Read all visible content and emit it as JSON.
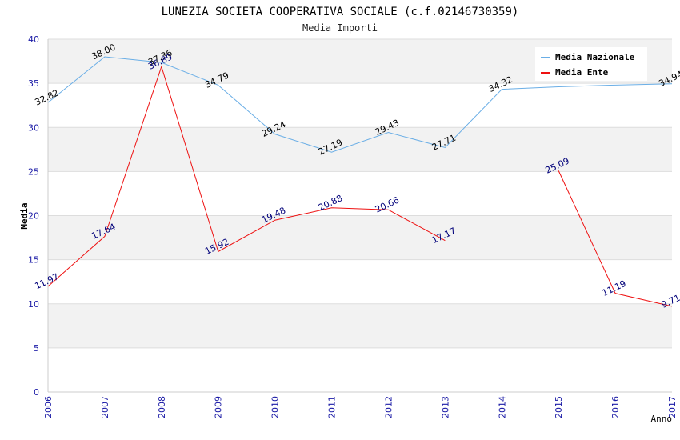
{
  "chart_data": {
    "type": "line",
    "title": "LUNEZIA SOCIETA COOPERATIVA SOCIALE (c.f.02146730359)",
    "subtitle": "Media Importi",
    "xlabel": "Anno",
    "ylabel": "Media",
    "ylim": [
      0,
      40
    ],
    "yticks": [
      "0",
      "5",
      "10",
      "15",
      "20",
      "25",
      "30",
      "35",
      "40"
    ],
    "categories": [
      "2006",
      "2007",
      "2008",
      "2009",
      "2010",
      "2011",
      "2012",
      "2013",
      "2014",
      "2015",
      "2016",
      "2017"
    ],
    "grid": true,
    "legend_position": "top-right",
    "series": [
      {
        "name": "Media Nazionale",
        "color": "#6aaee6",
        "label_color": "#000000",
        "values": [
          32.82,
          38.0,
          37.36,
          34.79,
          29.24,
          27.19,
          29.43,
          27.71,
          34.32,
          34.6,
          34.8,
          34.94
        ],
        "labels": [
          "32.82",
          "38.00",
          "37.36",
          "34.79",
          "29.24",
          "27.19",
          "29.43",
          "27.71",
          "34.32",
          null,
          null,
          "34.94"
        ]
      },
      {
        "name": "Media Ente",
        "color": "#ee1111",
        "label_color": "#00007a",
        "values": [
          11.97,
          17.64,
          36.89,
          15.92,
          19.48,
          20.88,
          20.66,
          17.17,
          null,
          25.09,
          11.19,
          9.71
        ],
        "labels": [
          "11.97",
          "17.64",
          "36.89",
          "15.92",
          "19.48",
          "20.88",
          "20.66",
          "17.17",
          null,
          "25.09",
          "11.19",
          "9.71"
        ]
      }
    ]
  }
}
